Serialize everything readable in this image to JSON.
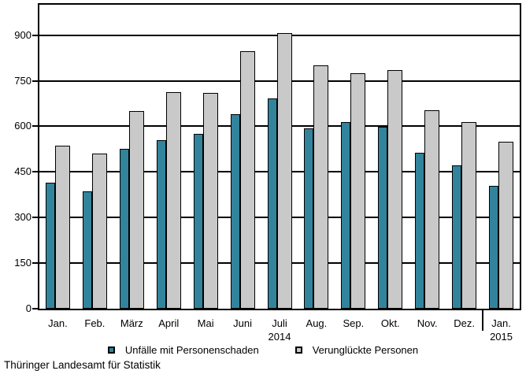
{
  "chart_data": {
    "type": "bar",
    "title": "",
    "xlabel": "",
    "ylabel": "",
    "categories": [
      "Jan.",
      "Feb.",
      "März",
      "April",
      "Mai",
      "Juni",
      "Juli",
      "Aug.",
      "Sep.",
      "Okt.",
      "Nov.",
      "Dez.",
      "Jan."
    ],
    "series": [
      {
        "name": "Unfälle mit Personenschaden",
        "color": "#31849B",
        "values": [
          414,
          385,
          525,
          554,
          576,
          639,
          693,
          593,
          614,
          598,
          512,
          471,
          404
        ]
      },
      {
        "name": "Verunglückte Personen",
        "color": "#C9C9C9",
        "values": [
          536,
          510,
          651,
          713,
          709,
          848,
          908,
          801,
          775,
          786,
          652,
          614,
          548
        ]
      }
    ],
    "ylim": [
      0,
      1000
    ],
    "yticks": [
      0,
      150,
      300,
      450,
      600,
      750,
      900
    ],
    "grid": true,
    "legend_position": "bottom",
    "year_labels": [
      {
        "text": "2014",
        "category_index": 6
      },
      {
        "text": "2015",
        "category_index": 12
      }
    ],
    "year_separator_before_index": 12
  },
  "source": {
    "label": "Thüringer Landesamt für Statistik"
  },
  "colors": {
    "bar_outline": "#000000",
    "axis": "#000000",
    "background": "#FFFFFF"
  }
}
